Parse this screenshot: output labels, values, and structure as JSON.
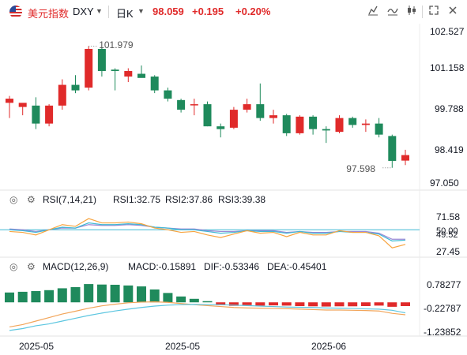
{
  "header": {
    "symbol_name": "美元指数",
    "symbol_code": "DXY",
    "period": "日K",
    "price": "98.059",
    "change": "+0.195",
    "change_pct": "+0.20%"
  },
  "toolbar_icons": [
    "compare-icon",
    "indicator-icon",
    "candle-type-icon",
    "settings-icon",
    "fullscreen-icon",
    "close-icon"
  ],
  "colors": {
    "up": "#e02a2a",
    "down": "#1f8a5c",
    "rsi1": "#f7a440",
    "rsi2": "#3fb8d4",
    "rsi3": "#9b87d6",
    "dif": "#f2a55a",
    "dea": "#5cc6e0",
    "accent": "#e02a2a"
  },
  "price_axis": [
    "102.527",
    "101.158",
    "99.788",
    "98.419",
    "97.050"
  ],
  "annotations": {
    "high": "101.979",
    "low": "97.598"
  },
  "rsi": {
    "title": "RSI(7,14,21)",
    "rsi1_label": "RSI1:32.75",
    "rsi2_label": "RSI2:37.86",
    "rsi3_label": "RSI3:39.38",
    "axis": [
      "71.58",
      "50.00",
      "49.52",
      "27.45"
    ]
  },
  "macd": {
    "title": "MACD(12,26,9)",
    "macd_label": "MACD:-0.15891",
    "dif_label": "DIF:-0.53346",
    "dea_label": "DEA:-0.45401",
    "axis": [
      "0.78277",
      "-0.22787",
      "-1.23852"
    ]
  },
  "time_axis": [
    "2025-05",
    "2025-05",
    "2025-06"
  ],
  "chart_data": {
    "type": "candlestick",
    "ylim": [
      97.05,
      102.527
    ],
    "candles": [
      {
        "o": 99.95,
        "h": 100.2,
        "l": 99.4,
        "c": 100.1
      },
      {
        "o": 99.8,
        "h": 99.9,
        "l": 99.5,
        "c": 99.95
      },
      {
        "o": 99.85,
        "h": 100.15,
        "l": 99.0,
        "c": 99.2
      },
      {
        "o": 99.2,
        "h": 99.9,
        "l": 99.1,
        "c": 99.85
      },
      {
        "o": 99.85,
        "h": 100.8,
        "l": 99.7,
        "c": 100.6
      },
      {
        "o": 100.6,
        "h": 100.95,
        "l": 100.3,
        "c": 100.4
      },
      {
        "o": 100.5,
        "h": 102.0,
        "l": 100.4,
        "c": 101.9
      },
      {
        "o": 101.9,
        "h": 101.95,
        "l": 100.9,
        "c": 101.1
      },
      {
        "o": 101.15,
        "h": 101.2,
        "l": 100.4,
        "c": 101.1
      },
      {
        "o": 100.9,
        "h": 101.2,
        "l": 100.7,
        "c": 101.1
      },
      {
        "o": 101.0,
        "h": 101.3,
        "l": 100.9,
        "c": 100.85
      },
      {
        "o": 100.9,
        "h": 100.95,
        "l": 100.3,
        "c": 100.4
      },
      {
        "o": 100.4,
        "h": 100.5,
        "l": 100.0,
        "c": 100.1
      },
      {
        "o": 100.05,
        "h": 100.1,
        "l": 99.6,
        "c": 99.7
      },
      {
        "o": 99.9,
        "h": 100.1,
        "l": 99.5,
        "c": 99.9
      },
      {
        "o": 99.9,
        "h": 100.0,
        "l": 99.1,
        "c": 99.1
      },
      {
        "o": 99.1,
        "h": 99.2,
        "l": 98.7,
        "c": 99.0
      },
      {
        "o": 99.05,
        "h": 99.8,
        "l": 99.0,
        "c": 99.7
      },
      {
        "o": 99.7,
        "h": 100.1,
        "l": 99.6,
        "c": 99.9
      },
      {
        "o": 99.9,
        "h": 100.65,
        "l": 99.3,
        "c": 99.4
      },
      {
        "o": 99.4,
        "h": 99.7,
        "l": 99.2,
        "c": 99.5
      },
      {
        "o": 99.5,
        "h": 99.55,
        "l": 98.75,
        "c": 98.85
      },
      {
        "o": 98.85,
        "h": 99.5,
        "l": 98.8,
        "c": 99.45
      },
      {
        "o": 99.45,
        "h": 99.5,
        "l": 98.8,
        "c": 99.0
      },
      {
        "o": 99.0,
        "h": 99.1,
        "l": 98.5,
        "c": 98.95
      },
      {
        "o": 98.9,
        "h": 99.5,
        "l": 98.85,
        "c": 99.4
      },
      {
        "o": 99.4,
        "h": 99.45,
        "l": 99.05,
        "c": 99.15
      },
      {
        "o": 99.15,
        "h": 99.35,
        "l": 98.9,
        "c": 99.2
      },
      {
        "o": 99.2,
        "h": 99.4,
        "l": 98.7,
        "c": 98.8
      },
      {
        "o": 98.75,
        "h": 98.8,
        "l": 97.6,
        "c": 97.85
      },
      {
        "o": 97.86,
        "h": 98.25,
        "l": 97.7,
        "c": 98.06
      }
    ],
    "rsi1": [
      48,
      47,
      44,
      50,
      56,
      54,
      63,
      58,
      58,
      59,
      57,
      52,
      50,
      47,
      48,
      44,
      41,
      45,
      49,
      46,
      47,
      42,
      47,
      44,
      44,
      49,
      47,
      47,
      43,
      29,
      33
    ],
    "rsi2": [
      50,
      49,
      47,
      50,
      53,
      52,
      58,
      56,
      56,
      57,
      56,
      53,
      52,
      50,
      50,
      48,
      46,
      47,
      49,
      48,
      48,
      46,
      48,
      46,
      46,
      48,
      47,
      47,
      45,
      37,
      38
    ],
    "rsi3": [
      51,
      50,
      48,
      50,
      52,
      52,
      56,
      55,
      55,
      56,
      55,
      53,
      52,
      51,
      51,
      49,
      48,
      48,
      49,
      49,
      49,
      47,
      48,
      47,
      47,
      48,
      48,
      48,
      46,
      39,
      39
    ],
    "macd_hist": [
      0.42,
      0.45,
      0.48,
      0.52,
      0.6,
      0.65,
      0.78,
      0.76,
      0.75,
      0.72,
      0.68,
      0.55,
      0.4,
      0.25,
      0.15,
      0.05,
      -0.12,
      -0.15,
      -0.12,
      -0.14,
      -0.13,
      -0.14,
      -0.16,
      -0.17,
      -0.18,
      -0.17,
      -0.17,
      -0.16,
      -0.14,
      -0.19,
      -0.16
    ],
    "dif": [
      -1.05,
      -0.95,
      -0.8,
      -0.65,
      -0.5,
      -0.38,
      -0.25,
      -0.15,
      -0.08,
      -0.02,
      0.01,
      0.02,
      0.0,
      -0.05,
      -0.1,
      -0.14,
      -0.18,
      -0.22,
      -0.24,
      -0.25,
      -0.26,
      -0.27,
      -0.29,
      -0.31,
      -0.33,
      -0.33,
      -0.34,
      -0.35,
      -0.37,
      -0.47,
      -0.53
    ],
    "dea": [
      -1.2,
      -1.12,
      -1.0,
      -0.92,
      -0.8,
      -0.68,
      -0.56,
      -0.46,
      -0.37,
      -0.29,
      -0.22,
      -0.16,
      -0.12,
      -0.1,
      -0.09,
      -0.1,
      -0.1,
      -0.12,
      -0.14,
      -0.16,
      -0.18,
      -0.2,
      -0.21,
      -0.22,
      -0.24,
      -0.25,
      -0.26,
      -0.28,
      -0.29,
      -0.34,
      -0.45
    ],
    "macd_range": [
      -1.23852,
      0.78277
    ],
    "rsi_range": [
      20,
      75
    ]
  }
}
